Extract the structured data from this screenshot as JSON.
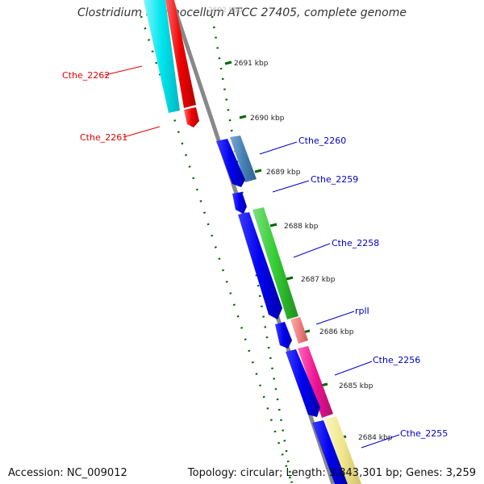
{
  "title": "Clostridium thermocellum ATCC 27405, complete genome",
  "footer": {
    "accession": "Accession: NC_009012",
    "summary": "Topology: circular; Length: 3,843,301 bp; Genes: 3,259"
  },
  "scale_labels": [
    "2691 kbp",
    "2690 kbp",
    "2689 kbp",
    "2688 kbp",
    "2687 kbp",
    "2686 kbp",
    "2685 kbp",
    "2684 kbp"
  ],
  "top_label_partial": "2692 kbp",
  "gene_labels": [
    {
      "name": "Cthe_2262",
      "color": "#e00000"
    },
    {
      "name": "Cthe_2261",
      "color": "#e00000"
    },
    {
      "name": "Cthe_2260",
      "color": "#0000cc"
    },
    {
      "name": "Cthe_2259",
      "color": "#0000cc"
    },
    {
      "name": "Cthe_2258",
      "color": "#0000cc"
    },
    {
      "name": "rplI",
      "color": "#0000cc"
    },
    {
      "name": "Cthe_2256",
      "color": "#0000cc"
    },
    {
      "name": "Cthe_2255",
      "color": "#0000cc"
    }
  ],
  "colors": {
    "backbone": "#888888",
    "cds_blue": "#0000ee",
    "tick_green": "#006600",
    "cyan": "#00e5ee",
    "red": "#ee0000",
    "steelblue": "#4682b4",
    "green": "#33cc33",
    "salmon": "#f08080",
    "magenta": "#ee1493",
    "khaki": "#f0e68c"
  }
}
